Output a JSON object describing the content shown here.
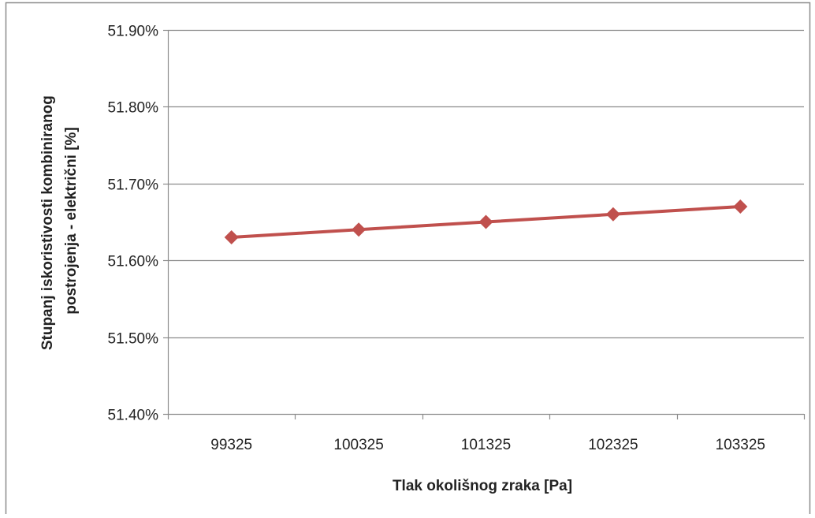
{
  "chart_data": {
    "type": "line",
    "title": "",
    "xlabel": "Tlak okolišnog zraka [Pa]",
    "ylabel_lines": [
      "Stupanj iskoristivosti kombiniranog",
      "postrojenja - električni  [%]"
    ],
    "categories": [
      "99325",
      "100325",
      "101325",
      "102325",
      "103325"
    ],
    "series": [
      {
        "values": [
          51.63,
          51.64,
          51.65,
          51.66,
          51.67
        ],
        "color": "#c0504d",
        "marker": "diamond"
      }
    ],
    "ylim": [
      51.4,
      51.9
    ],
    "y_step": 0.1,
    "y_tick_labels": [
      "51.40%",
      "51.50%",
      "51.60%",
      "51.70%",
      "51.80%",
      "51.90%"
    ],
    "grid": true,
    "legend": "none"
  }
}
